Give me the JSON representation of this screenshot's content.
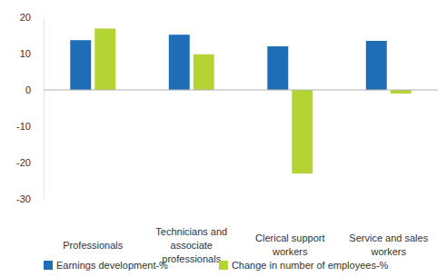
{
  "chart_data": {
    "type": "bar",
    "categories": [
      "Professionals",
      "Technicians and associate professionals",
      "Clerical support workers",
      "Service and sales workers"
    ],
    "series": [
      {
        "name": "Earnings development-%",
        "color": "#1f6db5",
        "values": [
          13.7,
          15.2,
          12.0,
          13.5
        ]
      },
      {
        "name": "Change in number of employees-%",
        "color": "#b4d434",
        "values": [
          16.9,
          9.8,
          -23.0,
          -1.0
        ]
      }
    ],
    "ylim": [
      -30,
      20
    ],
    "yticks": [
      -30,
      -20,
      -10,
      0,
      10,
      20
    ],
    "grid": false,
    "legend": "bottom"
  }
}
